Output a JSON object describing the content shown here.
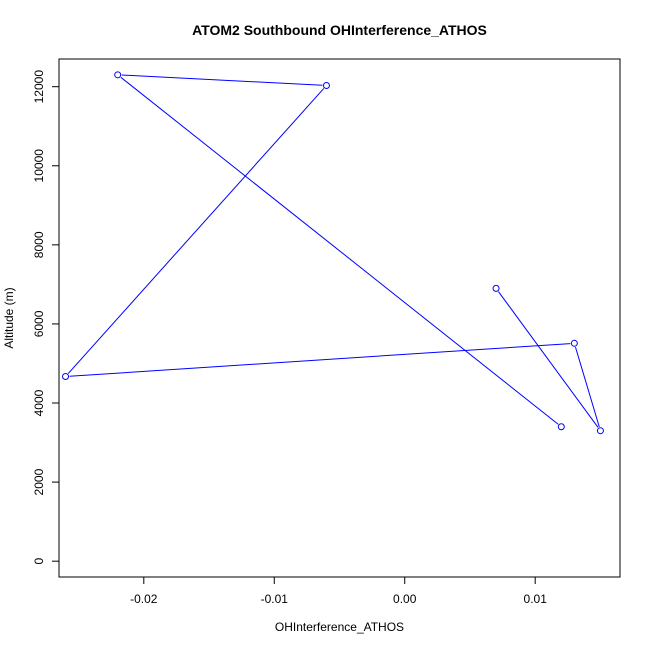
{
  "chart_data": {
    "type": "line",
    "title": "ATOM2 Southbound OHInterference_ATHOS",
    "xlabel": "OHInterference_ATHOS",
    "ylabel": "Altitude (m)",
    "xlim": [
      -0.0265,
      0.0165
    ],
    "ylim": [
      -400,
      12700
    ],
    "xticks": [
      -0.02,
      -0.01,
      0.0,
      0.01
    ],
    "xtick_labels": [
      "-0.02",
      "-0.01",
      "0.00",
      "0.01"
    ],
    "yticks": [
      0,
      2000,
      4000,
      6000,
      8000,
      10000,
      12000
    ],
    "ytick_labels": [
      "0",
      "2000",
      "4000",
      "6000",
      "8000",
      "10000",
      "12000"
    ],
    "grid": false,
    "legend": "none",
    "series": [
      {
        "color": "#0000ff",
        "marker": "open-circle",
        "x": [
          0.012,
          -0.022,
          -0.006,
          -0.026,
          0.013,
          0.015,
          0.007
        ],
        "y": [
          3400,
          12300,
          12030,
          4670,
          5510,
          3300,
          6900
        ]
      }
    ]
  }
}
